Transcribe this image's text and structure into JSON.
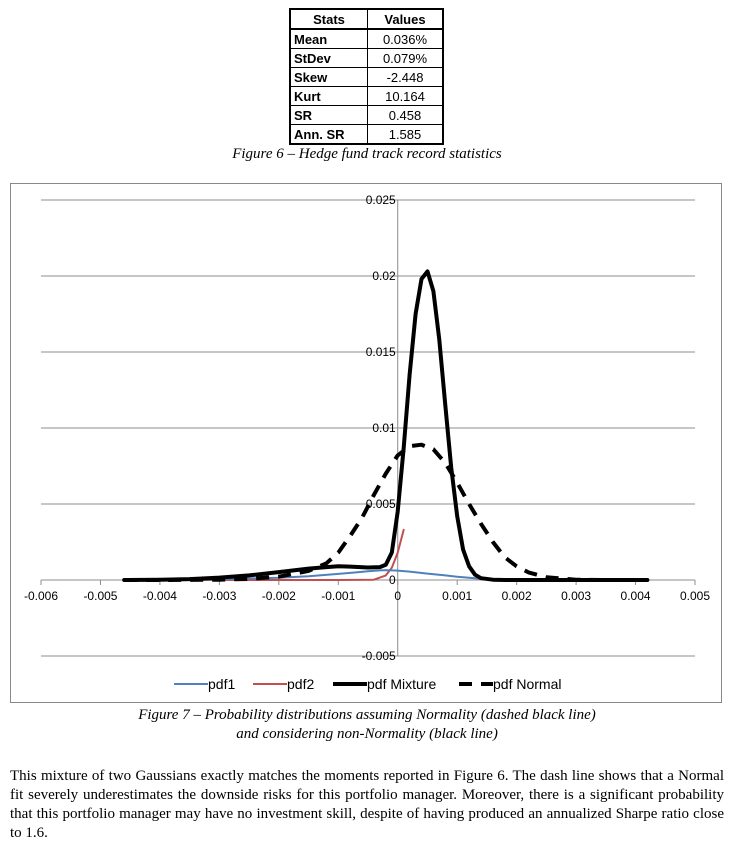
{
  "stats_table": {
    "headers": [
      "Stats",
      "Values"
    ],
    "rows": [
      {
        "stat": "Mean",
        "value": "0.036%"
      },
      {
        "stat": "StDev",
        "value": "0.079%"
      },
      {
        "stat": "Skew",
        "value": "-2.448"
      },
      {
        "stat": "Kurt",
        "value": "10.164"
      },
      {
        "stat": "SR",
        "value": "0.458"
      },
      {
        "stat": "Ann. SR",
        "value": "1.585"
      }
    ]
  },
  "figure6_caption": "Figure 6 – Hedge fund track record statistics",
  "chart_data": {
    "type": "line",
    "title": "",
    "xlabel": "",
    "ylabel": "",
    "xlim": [
      -0.006,
      0.005
    ],
    "ylim": [
      -0.005,
      0.025
    ],
    "x_ticks": [
      "-0.006",
      "-0.005",
      "-0.004",
      "-0.003",
      "-0.002",
      "-0.001",
      "0",
      "0.001",
      "0.002",
      "0.003",
      "0.004",
      "0.005"
    ],
    "y_ticks": [
      "-0.005",
      "0",
      "0.005",
      "0.01",
      "0.015",
      "0.02",
      "0.025"
    ],
    "grid": "horizontal",
    "legend_position": "bottom",
    "series": [
      {
        "name": "pdf1",
        "color": "#4f81bd",
        "style": "solid",
        "x": [
          -0.0046,
          -0.004,
          -0.003,
          -0.002,
          -0.0015,
          -0.001,
          -0.0007,
          -0.0005,
          -0.0003,
          -0.0002,
          0,
          0.0002,
          0.0005,
          0.0008,
          0.001,
          0.0013,
          0.0016,
          0.002,
          0.003,
          0.0042
        ],
        "y": [
          0,
          1e-05,
          5e-05,
          0.00015,
          0.00025,
          0.0004,
          0.0005,
          0.00058,
          0.00063,
          0.00065,
          0.00062,
          0.00055,
          0.00042,
          0.0003,
          0.00022,
          0.00012,
          5e-05,
          1e-05,
          0,
          0
        ]
      },
      {
        "name": "pdf2",
        "color": "#c0504d",
        "style": "solid",
        "x": [
          -0.0046,
          -0.003,
          -0.002,
          -0.001,
          -0.0004,
          -0.0002,
          -0.0001,
          0,
          0.0001
        ],
        "y": [
          0,
          0,
          0,
          0,
          2e-05,
          0.0003,
          0.0008,
          0.0018,
          0.0033
        ]
      },
      {
        "name": "pdf Mixture",
        "color": "#000000",
        "style": "solid",
        "x": [
          -0.0046,
          -0.004,
          -0.0035,
          -0.003,
          -0.0025,
          -0.002,
          -0.0015,
          -0.0012,
          -0.001,
          -0.0008,
          -0.0005,
          -0.0003,
          -0.0002,
          -0.0001,
          0,
          0.0001,
          0.0002,
          0.0003,
          0.0004,
          0.0005,
          0.0006,
          0.0007,
          0.0008,
          0.0009,
          0.001,
          0.0011,
          0.0012,
          0.0013,
          0.0014,
          0.0016,
          0.0018,
          0.002,
          0.0025,
          0.003,
          0.0035,
          0.0042
        ],
        "y": [
          0,
          2e-05,
          6e-05,
          0.00016,
          0.0003,
          0.00052,
          0.00075,
          0.00085,
          0.0009,
          0.00088,
          0.00082,
          0.00085,
          0.001,
          0.0018,
          0.0045,
          0.0087,
          0.0135,
          0.0175,
          0.0198,
          0.0203,
          0.019,
          0.0158,
          0.0115,
          0.0074,
          0.0042,
          0.002,
          0.0009,
          0.00035,
          0.00012,
          2e-05,
          0,
          0,
          0,
          0,
          0,
          0
        ]
      },
      {
        "name": "pdf Normal",
        "color": "#000000",
        "style": "dashed",
        "x": [
          -0.0046,
          -0.004,
          -0.003,
          -0.0025,
          -0.002,
          -0.0015,
          -0.0012,
          -0.001,
          -0.0008,
          -0.0006,
          -0.0004,
          -0.0002,
          0,
          0.0002,
          0.0004,
          0.0006,
          0.0008,
          0.001,
          0.0012,
          0.0014,
          0.0016,
          0.0018,
          0.002,
          0.0022,
          0.0025,
          0.003,
          0.0035,
          0.0042
        ],
        "y": [
          0,
          2e-06,
          2e-05,
          7e-05,
          0.00022,
          0.0006,
          0.0011,
          0.0018,
          0.0029,
          0.0041,
          0.0056,
          0.007,
          0.0082,
          0.0088,
          0.0089,
          0.0086,
          0.0077,
          0.0064,
          0.005,
          0.0037,
          0.0025,
          0.0015,
          0.0009,
          0.0005,
          0.00018,
          2e-05,
          0,
          0
        ]
      }
    ]
  },
  "figure7_caption_line1": "Figure 7 – Probability distributions assuming Normality (dashed black line)",
  "figure7_caption_line2": "and considering non-Normality (black line)",
  "body_paragraph": "This mixture of two Gaussians exactly matches the moments reported in Figure 6. The dash line shows that a Normal fit severely underestimates the downside risks for this portfolio manager. Moreover, there is a significant probability that this portfolio manager may have no investment skill, despite of having produced an annualized Sharpe ratio close to 1.6."
}
